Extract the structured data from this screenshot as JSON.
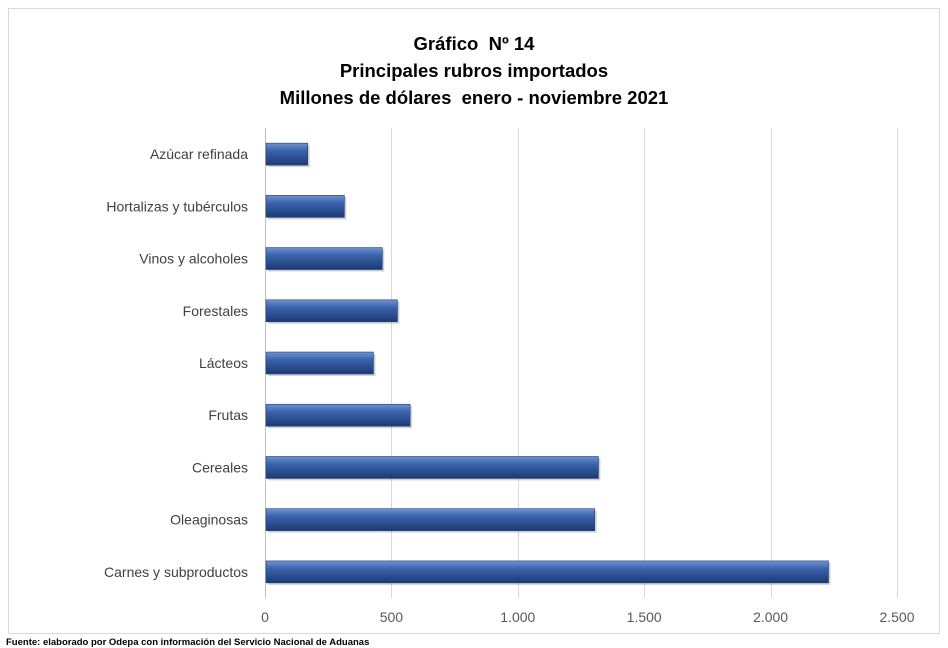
{
  "chart_data": {
    "type": "bar",
    "orientation": "horizontal",
    "title_lines": [
      "Gráfico  Nº 14",
      "Principales rubros importados",
      "Millones de dólares  enero - noviembre 2021"
    ],
    "categories": [
      "Carnes y subproductos",
      "Oleaginosas",
      "Cereales",
      "Frutas",
      "Lácteos",
      "Forestales",
      "Vinos y alcoholes",
      "Hortalizas y tubérculos",
      "Azúcar refinada"
    ],
    "values": [
      2225,
      1300,
      1315,
      570,
      425,
      520,
      460,
      310,
      165
    ],
    "xlim": [
      0,
      2500
    ],
    "xticks": [
      0,
      500,
      1000,
      1500,
      2000,
      2500
    ],
    "xtick_labels": [
      "0",
      "500",
      "1.000",
      "1.500",
      "2.000",
      "2.500"
    ],
    "xlabel": "",
    "ylabel": "",
    "grid": "vertical",
    "legend": "none",
    "bar_color": "#2f5597"
  },
  "source_note": "Fuente:  elaborado por  Odepa con información del Servicio Nacional de Aduanas"
}
